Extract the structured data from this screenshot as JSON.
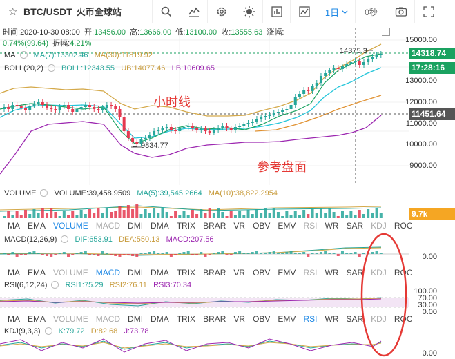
{
  "header": {
    "pair": "BTC/USDT",
    "exchange": "火币全球站",
    "interval": "1日",
    "countdown": "0秒"
  },
  "ohlc": {
    "time_label": "时间:",
    "time": "2020-10-30 08:00",
    "open_label": "开:",
    "open": "13456.00",
    "high_label": "高:",
    "high": "13666.00",
    "low_label": "低:",
    "low": "13100.00",
    "close_label": "收:",
    "close": "13555.63",
    "change_label": "涨幅:",
    "change": "0.74%(99.64)",
    "amp_label": "振幅:",
    "amp": "4.21%"
  },
  "main_indicators": {
    "ma_label": "MA",
    "ma7": "MA(7):13302.46",
    "ma30": "MA(30):11819.92",
    "boll_label": "BOLL(20,2)",
    "boll": "BOLL:12343.55",
    "ub": "UB:14077.46",
    "lb": "LB:10609.65"
  },
  "annotations": {
    "hourly": "小时线",
    "reference": "参考盘面",
    "high_marker": "14375.3",
    "low_marker": "9834.77"
  },
  "price_axis": {
    "ticks": [
      "15000.00",
      "14000.00",
      "13000.00",
      "12000.00",
      "11000.00",
      "10000.00",
      "9000.00"
    ],
    "current_price": "14318.74",
    "countdown_tag": "17:28:16",
    "crosshair_price": "11451.64"
  },
  "volume": {
    "label": "VOLUME",
    "value": "VOLUME:39,458.9509",
    "ma5": "MA(5):39,545.2664",
    "ma10": "MA(10):38,822.2954",
    "tag": "9.7k"
  },
  "indicator_tabs": [
    "MA",
    "EMA",
    "VOLUME",
    "MACD",
    "DMI",
    "DMA",
    "TRIX",
    "BRAR",
    "VR",
    "OBV",
    "EMV",
    "RSI",
    "WR",
    "SAR",
    "KDJ",
    "ROC"
  ],
  "macd": {
    "label": "MACD(12,26,9)",
    "dif": "DIF:653.91",
    "dea": "DEA:550.13",
    "macd": "MACD:207.56",
    "axis": "0.00"
  },
  "rsi": {
    "label": "RSI(6,12,24)",
    "rsi1": "RSI1:75.29",
    "rsi2": "RSI2:76.11",
    "rsi3": "RSI3:70.34",
    "axis": [
      "100.00",
      "70.00",
      "30.00",
      "0.00"
    ]
  },
  "kdj": {
    "label": "KDJ(9,3,3)",
    "k": "K:79.72",
    "d": "D:82.68",
    "j": "J:73.78",
    "axis": "0.00"
  },
  "colors": {
    "up": "#26a69a",
    "down": "#e53950",
    "accent": "#1e88e5",
    "tag_green": "#1aa260",
    "tag_gray": "#555555",
    "tag_orange": "#f5a623"
  }
}
